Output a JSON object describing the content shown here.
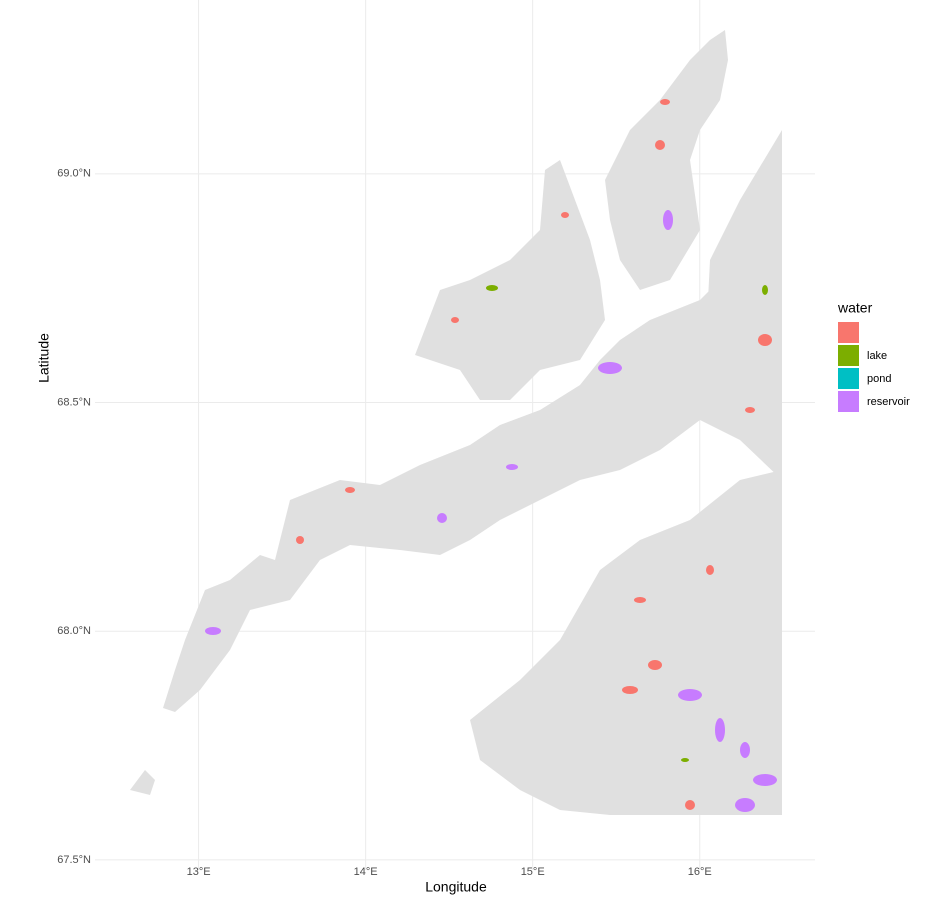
{
  "chart_data": {
    "type": "map",
    "x_label": "Longitude",
    "y_label": "Latitude",
    "legend_title": "water",
    "legend_position": "right",
    "grid": true,
    "xlim": [
      12.38,
      16.69
    ],
    "ylim": [
      67.478,
      69.38
    ],
    "xticks": [
      {
        "value": 13,
        "label": "13°E"
      },
      {
        "value": 14,
        "label": "14°E"
      },
      {
        "value": 15,
        "label": "15°E"
      },
      {
        "value": 16,
        "label": "16°E"
      }
    ],
    "yticks": [
      {
        "value": 67.5,
        "label": "67.5°N"
      },
      {
        "value": 68,
        "label": "68.0°N"
      },
      {
        "value": 68.5,
        "label": "68.5°N"
      },
      {
        "value": 69,
        "label": "69.0°N"
      }
    ],
    "series": [
      {
        "name": null,
        "color": "#F8766D"
      },
      {
        "name": "lake",
        "color": "#7CAE00"
      },
      {
        "name": "pond",
        "color": "#00BFC4"
      },
      {
        "name": "reservoir",
        "color": "#C77CFF"
      }
    ]
  }
}
